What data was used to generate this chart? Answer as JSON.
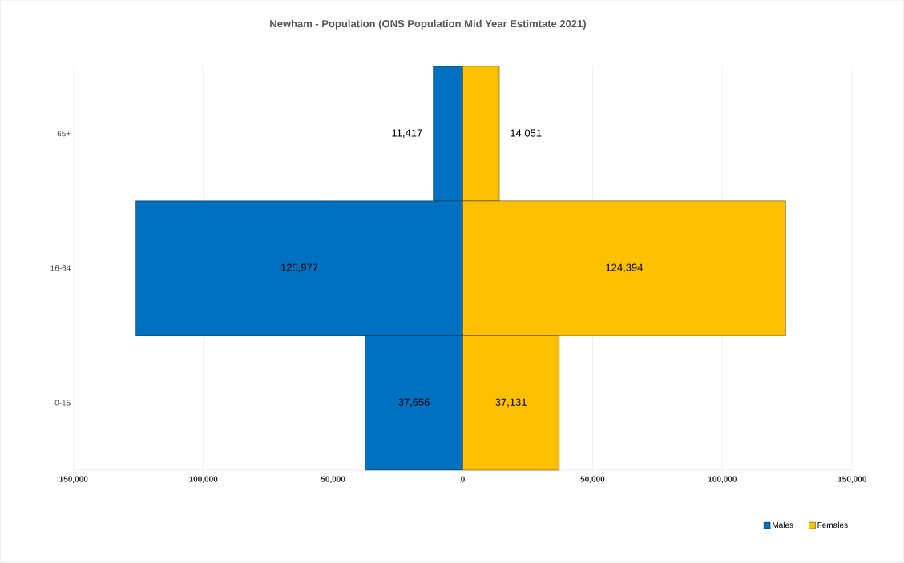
{
  "chart_data": [
    {
      "type": "bar",
      "orientation": "horizontal",
      "title": "Newham -  Population (ONS Population Mid Year Estimtate 2021)",
      "categories": [
        "65+",
        "16-64",
        "0-15"
      ],
      "series": [
        {
          "name": "Males",
          "color": "#0070c0",
          "values": [
            11417,
            125977,
            37656
          ],
          "value_labels": [
            "11,417",
            "125,977",
            "37,656"
          ]
        }
      ],
      "xlim": [
        150000,
        0
      ],
      "xticks": [
        {
          "value": 150000,
          "label": "150,000"
        },
        {
          "value": 100000,
          "label": "100,000"
        },
        {
          "value": 50000,
          "label": "50,000"
        }
      ],
      "grid": "x",
      "legend": "bottom right"
    },
    {
      "type": "bar",
      "orientation": "horizontal",
      "series": [
        {
          "name": "Females",
          "color": "#ffc000",
          "values": [
            14051,
            124394,
            37131
          ],
          "value_labels": [
            "14,051",
            "124,394",
            "37,131"
          ]
        }
      ],
      "xlim": [
        0,
        150000
      ],
      "xticks": [
        0,
        {
          "value": 50000,
          "label": "50,000"
        },
        {
          "value": 100000,
          "label": "100,000"
        },
        {
          "value": 150000,
          "label": "150,000"
        }
      ],
      "tick_labels": "x",
      "grid": "x",
      "legend": "bottom right"
    }
  ]
}
